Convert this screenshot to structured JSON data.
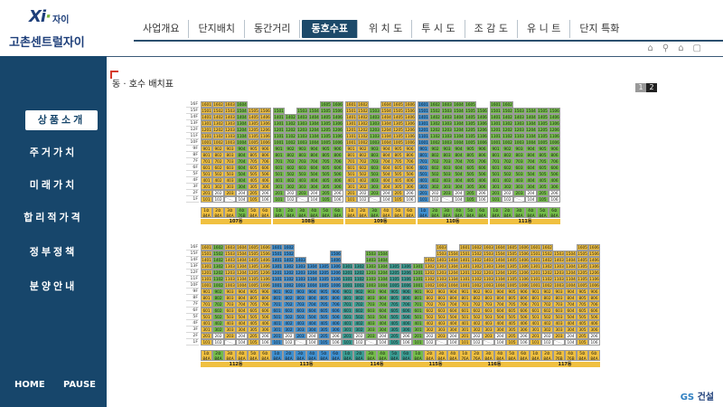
{
  "app": {
    "logo_mark": "Xi",
    "logo_sub": "자이",
    "logo_name": "고촌센트럴자이",
    "brand_footer_1": "GS",
    "brand_footer_2": "건설"
  },
  "nav": {
    "tabs": [
      "사업개요",
      "단지배치",
      "동간거리",
      "동호수표",
      "위 치 도",
      "투 시 도",
      "조 감 도",
      "유 니 트",
      "단지 특화"
    ],
    "active_index": 3
  },
  "sidebar": {
    "items": [
      "상품소개",
      "주거가치",
      "미래가치",
      "합리적가격",
      "정부정책",
      "분양안내"
    ],
    "active_index": 0,
    "home": "HOME",
    "pause": "PAUSE"
  },
  "page": {
    "title": "동 · 호수 배치표",
    "pages": [
      "1",
      "2"
    ],
    "current_page": "2"
  },
  "floors": [
    "16F",
    "15F",
    "14F",
    "13F",
    "12F",
    "11F",
    "10F",
    "9F",
    "8F",
    "7F",
    "6F",
    "5F",
    "4F",
    "3F",
    "2F",
    "1F"
  ],
  "buildings_top": [
    {
      "name": "107동",
      "cols": [
        "1",
        "2",
        "3",
        "4",
        "5",
        "6"
      ],
      "colors": [
        "y",
        "y",
        "y",
        "g",
        "y",
        "y"
      ],
      "types": [
        "84A",
        "84A",
        "84A",
        "76B",
        "84A",
        "84A"
      ],
      "tops": [
        16,
        16,
        16,
        16,
        15,
        15
      ]
    },
    {
      "name": "108동",
      "cols": [
        "1",
        "2",
        "3",
        "4",
        "5",
        "6"
      ],
      "colors": [
        "g",
        "g",
        "g",
        "g",
        "g",
        "g"
      ],
      "types": [
        "84A",
        "84A",
        "84A",
        "84A",
        "84A",
        "84A"
      ],
      "tops": [
        15,
        14,
        15,
        15,
        16,
        16
      ]
    },
    {
      "name": "109동",
      "cols": [
        "1",
        "2",
        "3",
        "4",
        "5",
        "6"
      ],
      "colors": [
        "y",
        "y",
        "g",
        "y",
        "y",
        "y"
      ],
      "types": [
        "84A",
        "84A",
        "84A",
        "84A",
        "84A",
        "84A"
      ],
      "tops": [
        16,
        16,
        15,
        16,
        16,
        16
      ]
    },
    {
      "name": "110동",
      "cols": [
        "1",
        "2",
        "3",
        "4",
        "5",
        "6"
      ],
      "colors": [
        "b",
        "g",
        "g",
        "g",
        "g",
        "g"
      ],
      "types": [
        "84A",
        "84A",
        "84A",
        "84A",
        "84A",
        "84A"
      ],
      "tops": [
        16,
        16,
        16,
        16,
        16,
        15
      ]
    },
    {
      "name": "111동",
      "cols": [
        "1",
        "2",
        "3",
        "4",
        "5",
        "6"
      ],
      "colors": [
        "g",
        "g",
        "g",
        "g",
        "g",
        "g"
      ],
      "types": [
        "84A",
        "84A",
        "84A",
        "84A",
        "84A",
        "84A"
      ],
      "tops": [
        16,
        16,
        15,
        15,
        15,
        15
      ]
    }
  ],
  "buildings_bottom": [
    {
      "name": "112동",
      "cols": [
        "1",
        "2",
        "3",
        "4",
        "5",
        "6"
      ],
      "colors": [
        "y",
        "g",
        "y",
        "y",
        "y",
        "y"
      ],
      "types": [
        "84A",
        "84A",
        "84A",
        "84A",
        "84A",
        "84A"
      ],
      "tops": [
        16,
        16,
        16,
        16,
        16,
        16
      ]
    },
    {
      "name": "113동",
      "cols": [
        "1",
        "2",
        "3",
        "4",
        "5",
        "6"
      ],
      "colors": [
        "b",
        "b",
        "b",
        "b",
        "b",
        "b"
      ],
      "types": [
        "84A",
        "84A",
        "84A",
        "84A",
        "84A",
        "84A"
      ],
      "tops": [
        16,
        16,
        14,
        13,
        13,
        15
      ]
    },
    {
      "name": "114동",
      "cols": [
        "1",
        "2",
        "3",
        "4",
        "5",
        "6"
      ],
      "colors": [
        "t",
        "t",
        "g",
        "g",
        "t",
        "t"
      ],
      "types": [
        "84A",
        "84A",
        "84A",
        "84A",
        "84A",
        "84A"
      ],
      "tops": [
        13,
        13,
        15,
        15,
        13,
        13
      ]
    },
    {
      "name": "115동",
      "cols": [
        "1",
        "2",
        "3",
        "4"
      ],
      "colors": [
        "g",
        "y",
        "y",
        "y"
      ],
      "types": [
        "84A",
        "84A",
        "84A",
        "84A"
      ],
      "tops": [
        13,
        14,
        16,
        15
      ]
    },
    {
      "name": "116동",
      "cols": [
        "1",
        "2",
        "3",
        "4",
        "5",
        "6"
      ],
      "colors": [
        "y",
        "y",
        "y",
        "y",
        "y",
        "y"
      ],
      "types": [
        "76A",
        "76A",
        "84A",
        "84A",
        "84A",
        "84A"
      ],
      "tops": [
        16,
        16,
        16,
        16,
        16,
        16
      ]
    },
    {
      "name": "117동",
      "cols": [
        "1",
        "2",
        "3",
        "4",
        "5",
        "6"
      ],
      "colors": [
        "y",
        "y",
        "y",
        "y",
        "y",
        "y"
      ],
      "types": [
        "84A",
        "84A",
        "76B",
        "76B",
        "84A",
        "84A"
      ],
      "tops": [
        16,
        16,
        15,
        15,
        16,
        16
      ]
    }
  ],
  "type_label_suffix": "호"
}
